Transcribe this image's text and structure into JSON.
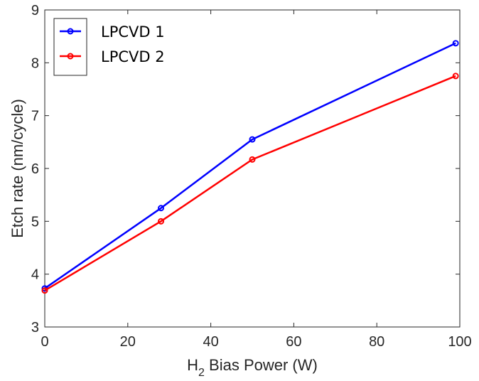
{
  "chart_data": {
    "type": "line",
    "x": [
      0,
      28,
      50,
      99
    ],
    "series": [
      {
        "name": "LPCVD 1",
        "color": "#0000ff",
        "values": [
          3.73,
          5.25,
          6.55,
          8.37
        ]
      },
      {
        "name": "LPCVD 2",
        "color": "#ff0000",
        "values": [
          3.69,
          5.0,
          6.17,
          7.75
        ]
      }
    ],
    "xlabel": {
      "main": "H",
      "sub": "2",
      "rest": " Bias Power (W)"
    },
    "ylabel": "Etch rate (nm/cycle)",
    "xlim": [
      0,
      100
    ],
    "ylim": [
      3,
      9
    ],
    "xticks": [
      0,
      20,
      40,
      60,
      80,
      100
    ],
    "yticks": [
      3,
      4,
      5,
      6,
      7,
      8,
      9
    ],
    "grid": false,
    "legend_position": "top-left",
    "marker": "open-circle"
  }
}
